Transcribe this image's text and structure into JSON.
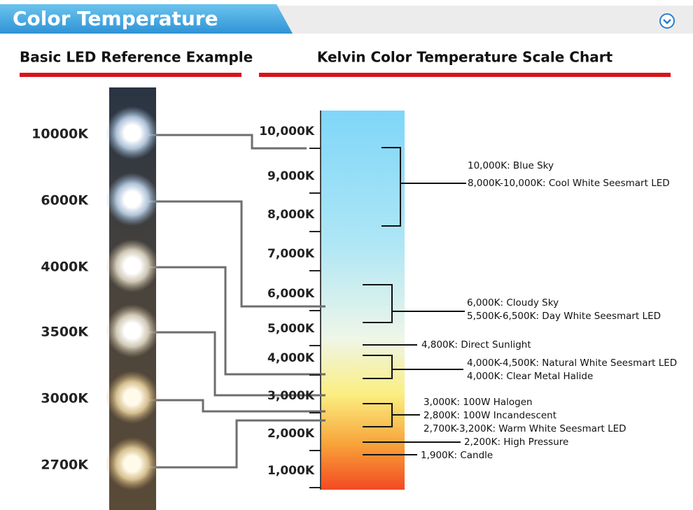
{
  "header": {
    "title": "Color Temperature"
  },
  "left": {
    "title": "Basic LED Reference Example",
    "leds": [
      "10000K",
      "6000K",
      "4000K",
      "3500K",
      "3000K",
      "2700K"
    ]
  },
  "right": {
    "title": "Kelvin Color Temperature Scale Chart",
    "ticks": [
      "10,000K",
      "9,000K",
      "8,000K",
      "7,000K",
      "6,000K",
      "5,000K",
      "4,000K",
      "3,000K",
      "2,000K",
      "1,000K"
    ],
    "annotations": [
      "10,000K: Blue Sky",
      "8,000K-10,000K: Cool White Seesmart LED",
      "6,000K: Cloudy Sky",
      "5,500K-6,500K: Day White Seesmart LED",
      "4,800K: Direct Sunlight",
      "4,000K-4,500K: Natural White Seesmart LED",
      "4,000K: Clear Metal Halide",
      "3,000K: 100W Halogen",
      "2,800K: 100W Incandescent",
      "2,700K-3,200K: Warm White Seesmart LED",
      "2,200K: High Pressure",
      "1,900K: Candle"
    ]
  }
}
